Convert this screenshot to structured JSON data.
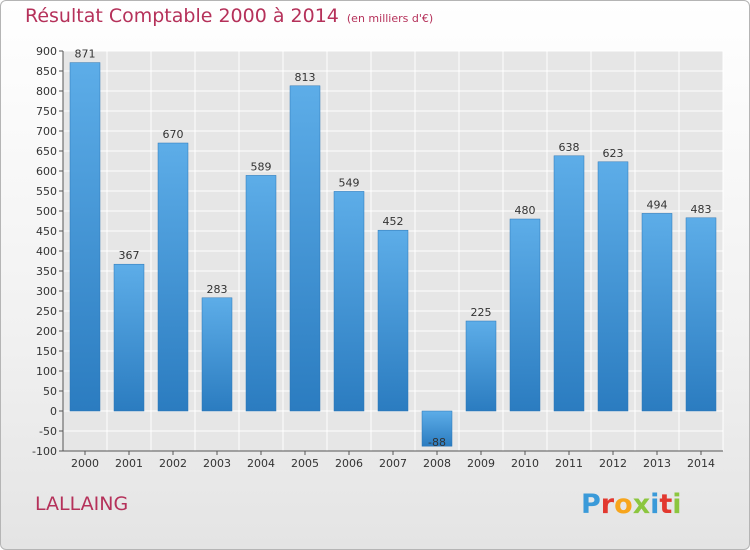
{
  "title": "Résultat Comptable 2000 à 2014",
  "subtitle": "(en milliers d'€)",
  "commune": "LALLAING",
  "logo": {
    "letters": [
      "P",
      "r",
      "o",
      "x",
      "i",
      "t",
      "i"
    ],
    "colors": [
      "#3a9ad9",
      "#e2382f",
      "#f7a51c",
      "#8cc63f",
      "#3a9ad9",
      "#e2382f",
      "#8cc63f"
    ]
  },
  "colors": {
    "bar_top": "#5dade8",
    "bar_bottom": "#2b7cc0",
    "title": "#b5315a"
  },
  "chart_data": {
    "type": "bar",
    "categories": [
      "2000",
      "2001",
      "2002",
      "2003",
      "2004",
      "2005",
      "2006",
      "2007",
      "2008",
      "2009",
      "2010",
      "2011",
      "2012",
      "2013",
      "2014"
    ],
    "values": [
      871,
      367,
      670,
      283,
      589,
      813,
      549,
      452,
      -88,
      225,
      480,
      638,
      623,
      494,
      483
    ],
    "ylim": [
      -100,
      900
    ],
    "yticks": [
      -100,
      -50,
      0,
      50,
      100,
      150,
      200,
      250,
      300,
      350,
      400,
      450,
      500,
      550,
      600,
      650,
      700,
      750,
      800,
      850,
      900
    ],
    "grid": true
  }
}
